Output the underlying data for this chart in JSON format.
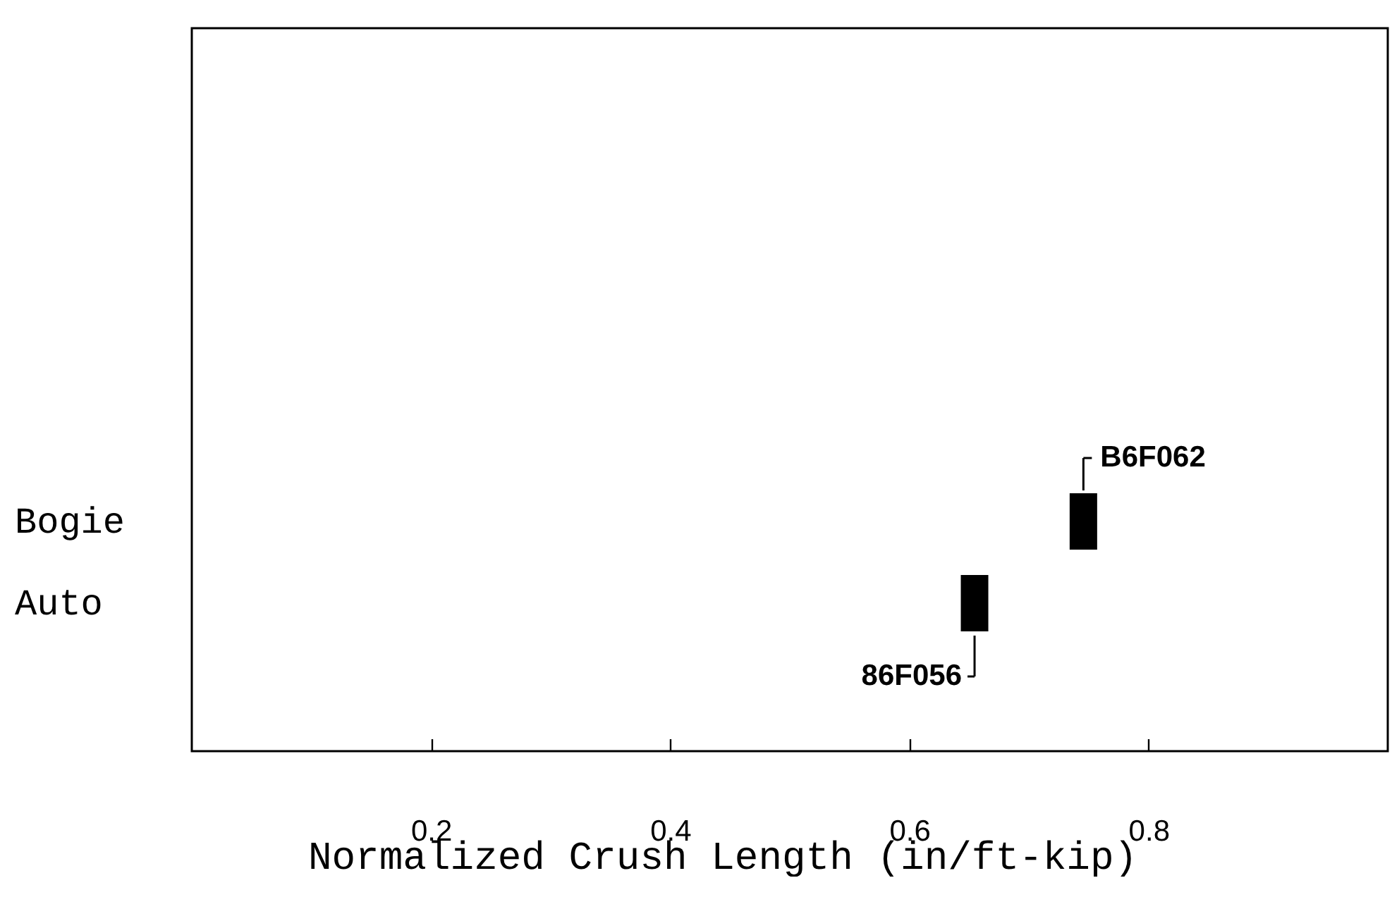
{
  "chart_data": {
    "type": "bar",
    "orientation": "horizontal",
    "categories": [
      "Bogie",
      "Auto"
    ],
    "base": [
      0.734,
      0.643
    ],
    "values": [
      0.023,
      0.023
    ],
    "color": "#000000",
    "xlabel": "Normalized Crush Length (in/ft-kip)",
    "xlim": [
      0,
      1
    ],
    "xticks": [
      0.2,
      0.4,
      0.6,
      0.8
    ],
    "annotations": [
      "B6F062",
      "86F056"
    ]
  }
}
